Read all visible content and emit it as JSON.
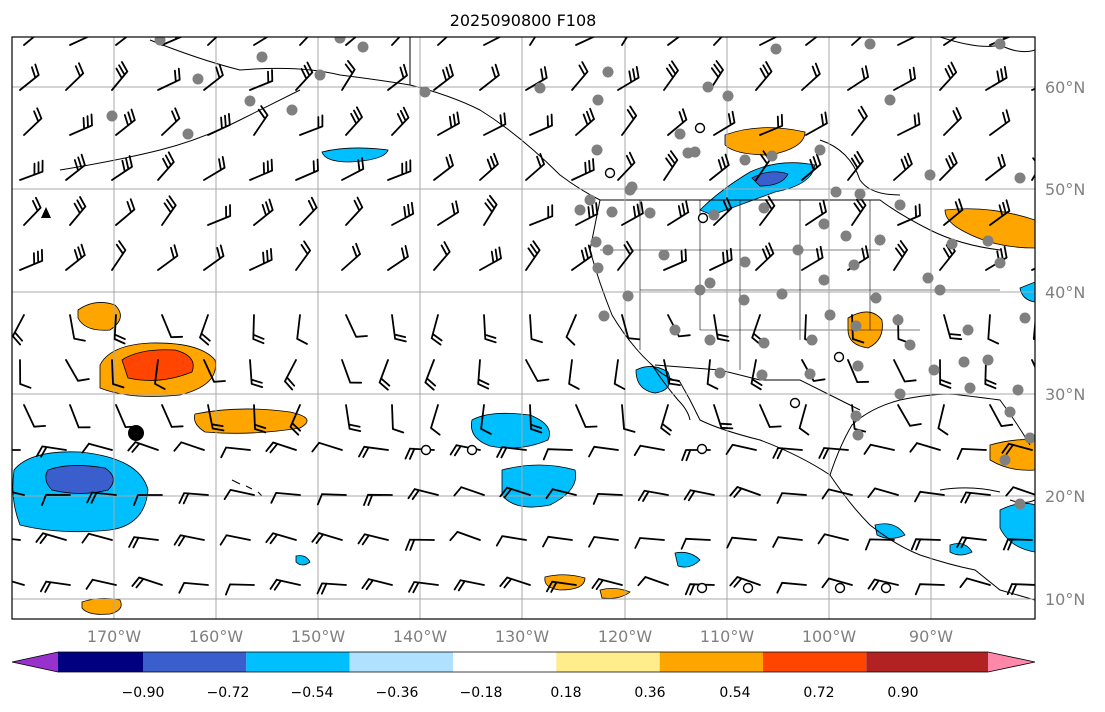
{
  "title": "2025090800 F108",
  "map": {
    "lon_labels": [
      "170°W",
      "160°W",
      "150°W",
      "140°W",
      "130°W",
      "120°W",
      "110°W",
      "100°W",
      "90°W"
    ],
    "lat_labels": [
      "60°N",
      "50°N",
      "40°N",
      "30°N",
      "20°N",
      "10°N"
    ],
    "grid": true
  },
  "colorbar": {
    "tick_labels": [
      "−0.90",
      "−0.72",
      "−0.54",
      "−0.36",
      "−0.18",
      "0.18",
      "0.36",
      "0.54",
      "0.72",
      "0.90"
    ],
    "colors": [
      "#9932cc",
      "#000080",
      "#3a5fcd",
      "#00bfff",
      "#b0e2ff",
      "#ffffff",
      "#ffec8b",
      "#ffa500",
      "#ff4500",
      "#b22222",
      "#ff88aa"
    ],
    "extend": "both"
  },
  "colors": {
    "orange": "#ffa500",
    "red_orange": "#ff4500",
    "deep_sky_blue": "#00bfff",
    "royal_blue": "#3a5fcd",
    "station_dot": "#808080",
    "grid": "#a9a9a9"
  }
}
